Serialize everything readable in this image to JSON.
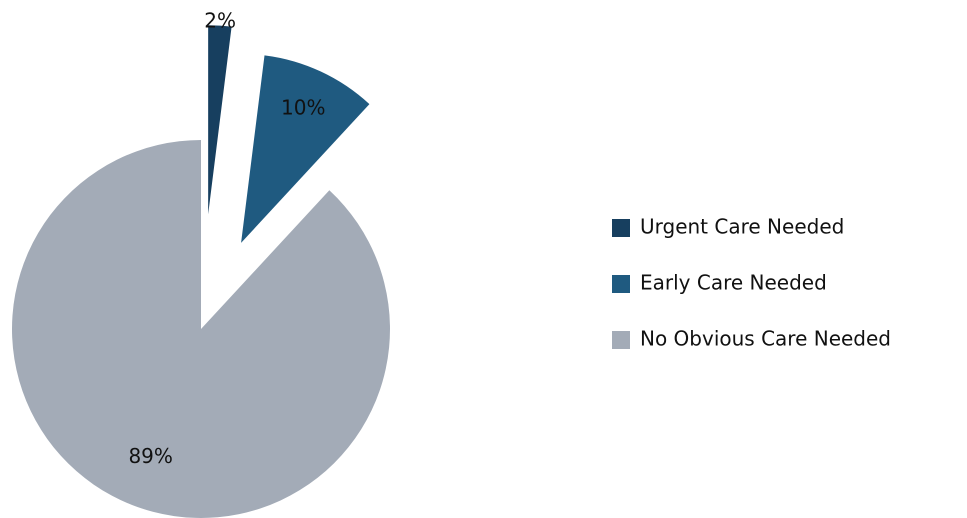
{
  "chart_data": {
    "type": "pie",
    "categories": [
      "Urgent Care Needed",
      "Early Care Needed",
      "No Obvious Care Needed"
    ],
    "values": [
      2,
      10,
      89
    ],
    "value_labels": [
      "2%",
      "10%",
      "89%"
    ],
    "colors": [
      "#173f5f",
      "#1f5a80",
      "#a3abb7"
    ],
    "legend": "right"
  }
}
